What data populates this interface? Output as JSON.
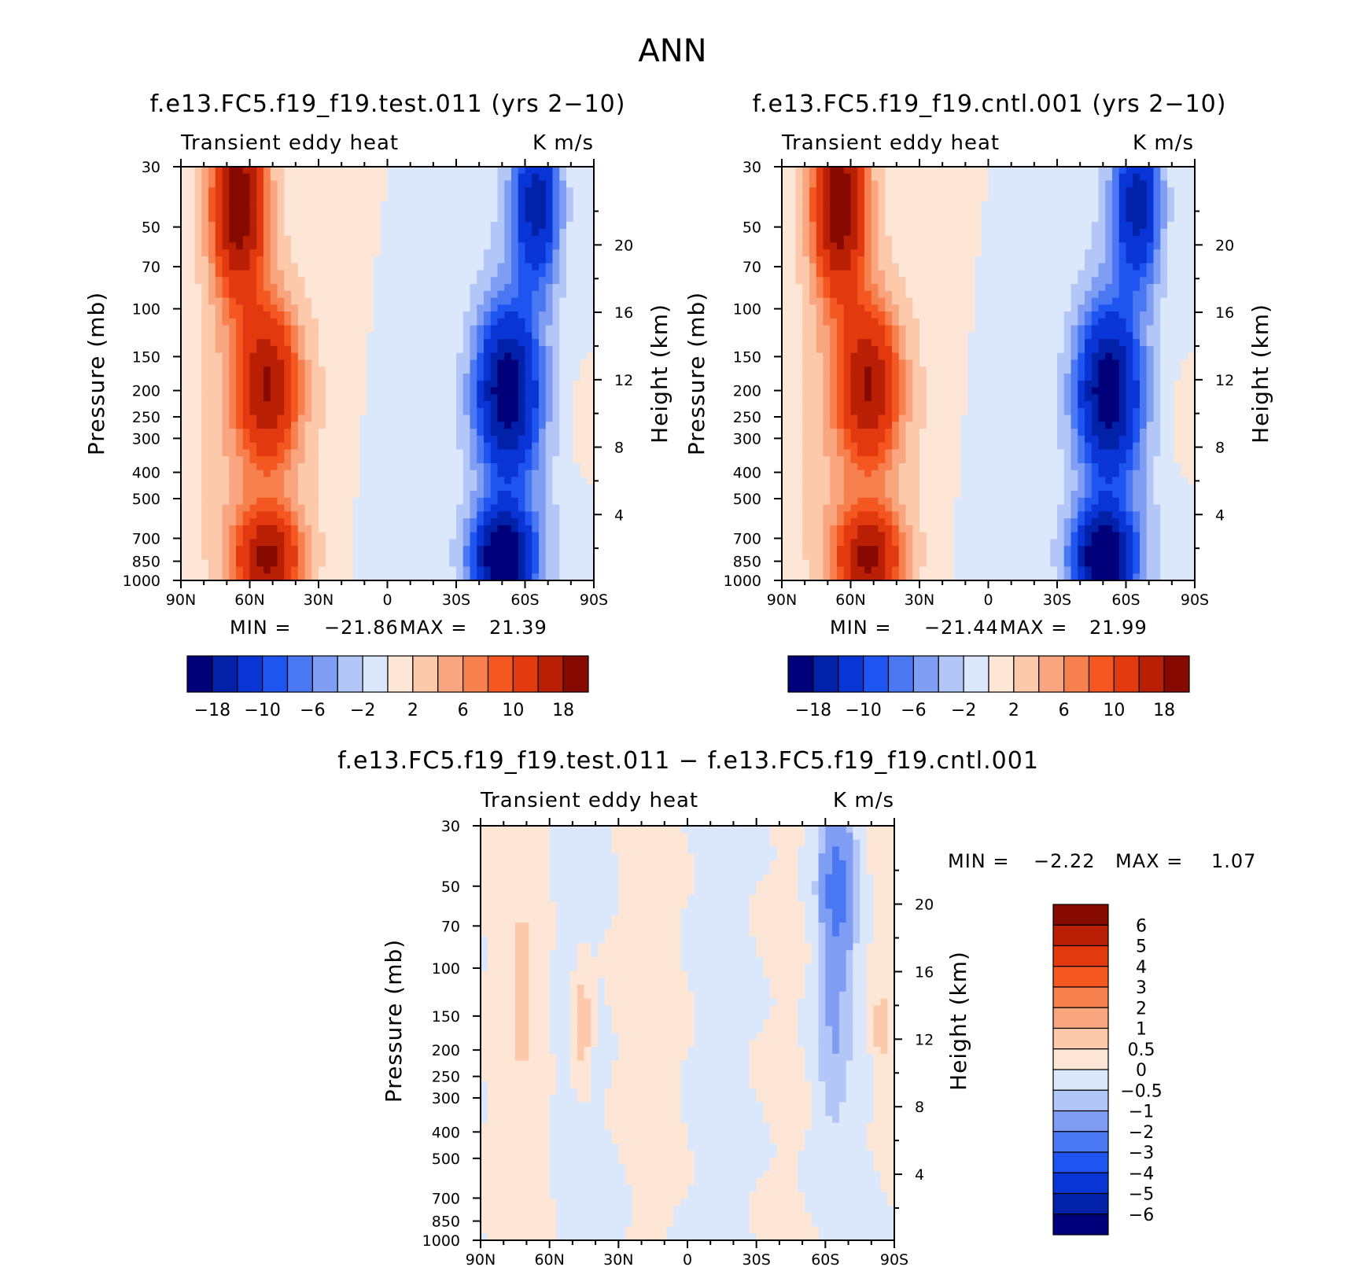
{
  "figure": {
    "title": "ANN"
  },
  "colors": {
    "neg": [
      "#00007a",
      "#0021a8",
      "#0a35d6",
      "#1e55f0",
      "#4a78f2",
      "#7f9ef3",
      "#b2c6f7",
      "#dbe8fb"
    ],
    "pos": [
      "#fde6d6",
      "#fcc9ab",
      "#f9a57f",
      "#f7804f",
      "#f4571f",
      "#e23a0e",
      "#b91f05",
      "#860a00"
    ]
  },
  "chart_data": [
    {
      "id": "test",
      "type": "contour",
      "title": "f.e13.FC5.f19_f19.test.011 (yrs 2−10)",
      "field_label": "Transient eddy heat",
      "units": "K m/s",
      "ylabel": "Pressure (mb)",
      "y2label": "Height (km)",
      "x_ticks": [
        "90N",
        "60N",
        "30N",
        "0",
        "30S",
        "60S",
        "90S"
      ],
      "x_values": [
        90,
        60,
        30,
        0,
        -30,
        -60,
        -90
      ],
      "y_ticks": [
        "30",
        "50",
        "70",
        "100",
        "150",
        "200",
        "250",
        "300",
        "400",
        "500",
        "700",
        "850",
        "1000"
      ],
      "y_values": [
        30,
        50,
        70,
        100,
        150,
        200,
        250,
        300,
        400,
        500,
        700,
        850,
        1000
      ],
      "y2_ticks": [
        "20",
        "16",
        "12",
        "8",
        "4"
      ],
      "y2_values": [
        20,
        16,
        12,
        8,
        4
      ],
      "stats": {
        "min_label": "MIN =",
        "min": "−21.86",
        "max_label": "MAX =",
        "max": "21.39"
      },
      "colorbar": {
        "orientation": "horizontal",
        "labels": [
          "−18",
          "−10",
          "−6",
          "−2",
          "2",
          "6",
          "10",
          "18"
        ],
        "levels": [
          -18,
          -14,
          -10,
          -8,
          -6,
          -4,
          -2,
          0,
          2,
          4,
          6,
          8,
          10,
          14,
          18
        ]
      },
      "features": [
        {
          "lat": 65,
          "p": 40,
          "value": 21.39
        },
        {
          "lat": 52,
          "p": 190,
          "value": 14
        },
        {
          "lat": 52,
          "p": 830,
          "value": 16
        },
        {
          "lat": -65,
          "p": 40,
          "value": -15
        },
        {
          "lat": -52,
          "p": 200,
          "value": -17
        },
        {
          "lat": -50,
          "p": 830,
          "value": -21.86
        },
        {
          "lat": -80,
          "p": 260,
          "value": 1
        }
      ]
    },
    {
      "id": "cntl",
      "type": "contour",
      "title": "f.e13.FC5.f19_f19.cntl.001 (yrs 2−10)",
      "field_label": "Transient eddy heat",
      "units": "K m/s",
      "ylabel": "Pressure (mb)",
      "y2label": "Height (km)",
      "x_ticks": [
        "90N",
        "60N",
        "30N",
        "0",
        "30S",
        "60S",
        "90S"
      ],
      "x_values": [
        90,
        60,
        30,
        0,
        -30,
        -60,
        -90
      ],
      "y_ticks": [
        "30",
        "50",
        "70",
        "100",
        "150",
        "200",
        "250",
        "300",
        "400",
        "500",
        "700",
        "850",
        "1000"
      ],
      "y_values": [
        30,
        50,
        70,
        100,
        150,
        200,
        250,
        300,
        400,
        500,
        700,
        850,
        1000
      ],
      "y2_ticks": [
        "20",
        "16",
        "12",
        "8",
        "4"
      ],
      "y2_values": [
        20,
        16,
        12,
        8,
        4
      ],
      "stats": {
        "min_label": "MIN =",
        "min": "−21.44",
        "max_label": "MAX =",
        "max": "21.99"
      },
      "colorbar": {
        "orientation": "horizontal",
        "labels": [
          "−18",
          "−10",
          "−6",
          "−2",
          "2",
          "6",
          "10",
          "18"
        ],
        "levels": [
          -18,
          -14,
          -10,
          -8,
          -6,
          -4,
          -2,
          0,
          2,
          4,
          6,
          8,
          10,
          14,
          18
        ]
      },
      "features": [
        {
          "lat": 65,
          "p": 40,
          "value": 21.99
        },
        {
          "lat": 52,
          "p": 190,
          "value": 14
        },
        {
          "lat": 52,
          "p": 830,
          "value": 16
        },
        {
          "lat": -65,
          "p": 40,
          "value": -15
        },
        {
          "lat": -52,
          "p": 200,
          "value": -17
        },
        {
          "lat": -50,
          "p": 830,
          "value": -21.44
        },
        {
          "lat": -80,
          "p": 260,
          "value": 1
        }
      ]
    },
    {
      "id": "diff",
      "type": "contour",
      "title": "f.e13.FC5.f19_f19.test.011 − f.e13.FC5.f19_f19.cntl.001",
      "field_label": "Transient eddy heat",
      "units": "K m/s",
      "ylabel": "Pressure (mb)",
      "y2label": "Height (km)",
      "x_ticks": [
        "90N",
        "60N",
        "30N",
        "0",
        "30S",
        "60S",
        "90S"
      ],
      "x_values": [
        90,
        60,
        30,
        0,
        -30,
        -60,
        -90
      ],
      "y_ticks": [
        "30",
        "50",
        "70",
        "100",
        "150",
        "200",
        "250",
        "300",
        "400",
        "500",
        "700",
        "850",
        "1000"
      ],
      "y_values": [
        30,
        50,
        70,
        100,
        150,
        200,
        250,
        300,
        400,
        500,
        700,
        850,
        1000
      ],
      "y2_ticks": [
        "20",
        "16",
        "12",
        "8",
        "4"
      ],
      "y2_values": [
        20,
        16,
        12,
        8,
        4
      ],
      "stats": {
        "min_label": "MIN =",
        "min": "−2.22",
        "max_label": "MAX =",
        "max": "1.07"
      },
      "colorbar": {
        "orientation": "vertical",
        "labels": [
          "6",
          "5",
          "4",
          "3",
          "2",
          "1",
          "0.5",
          "0",
          "−0.5",
          "−1",
          "−2",
          "−3",
          "−4",
          "−5",
          "−6"
        ],
        "levels": [
          6,
          5,
          4,
          3,
          2,
          1,
          0.5,
          0,
          -0.5,
          -1,
          -2,
          -3,
          -4,
          -5,
          -6
        ]
      },
      "features": [
        {
          "lat": -65,
          "p": 60,
          "value": -2.22
        },
        {
          "lat": 46,
          "p": 160,
          "value": 1.07
        },
        {
          "lat": 72,
          "p": 120,
          "value": 0.8
        },
        {
          "lat": -83,
          "p": 180,
          "value": 0.6
        }
      ]
    }
  ]
}
